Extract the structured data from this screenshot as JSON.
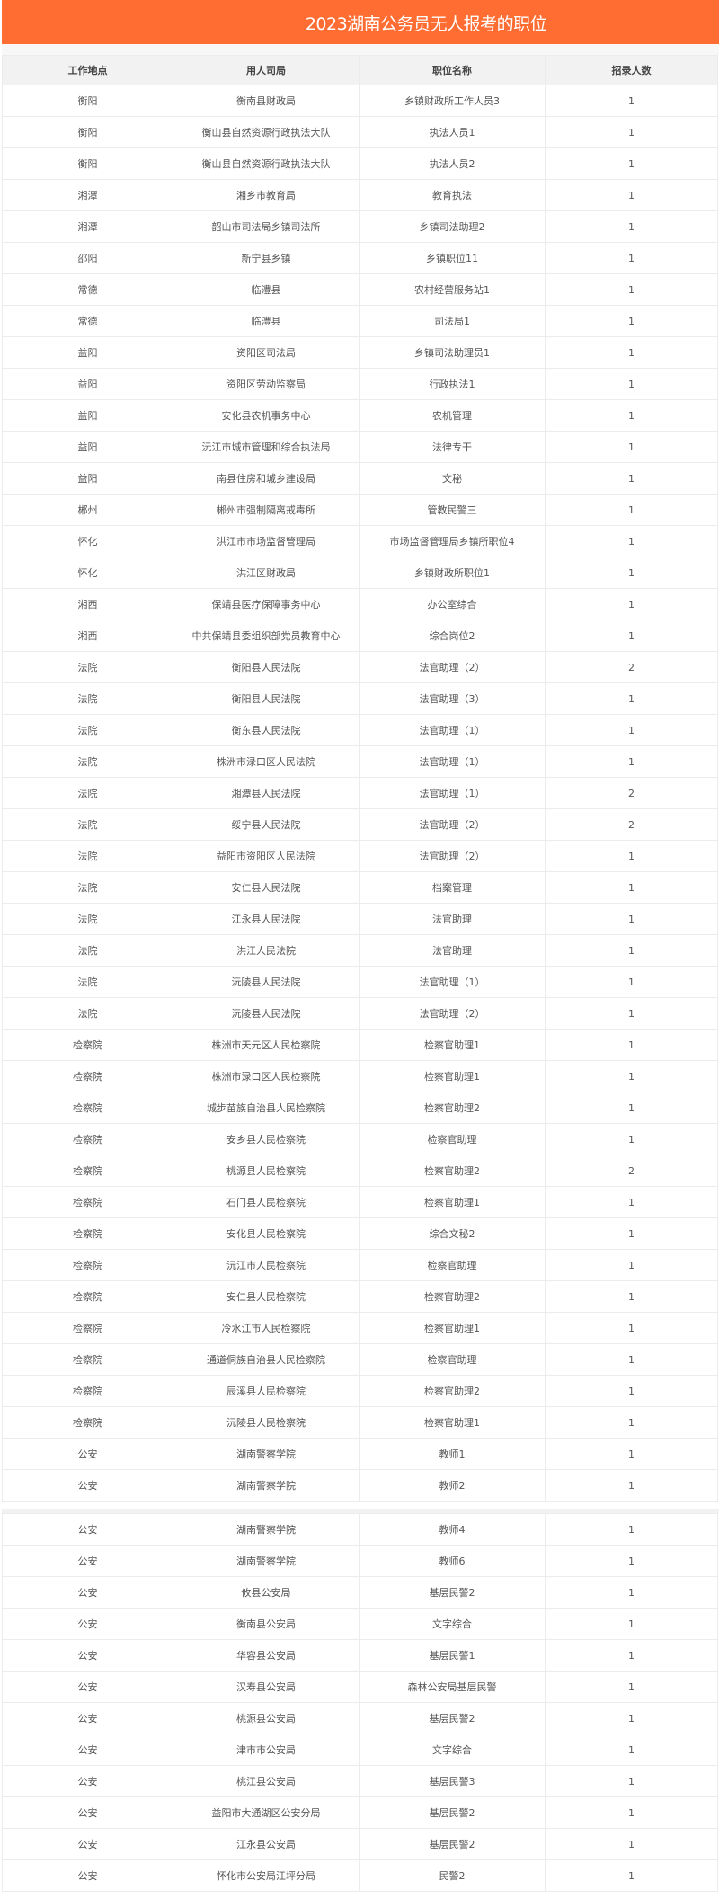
{
  "title": "2023湖南公务员无人报考的职位",
  "columns": [
    "工作地点",
    "用人司局",
    "职位名称",
    "招录人数"
  ],
  "rows_block1": [
    [
      "衡阳",
      "衡南县财政局",
      "乡镇财政所工作人员3",
      "1"
    ],
    [
      "衡阳",
      "衡山县自然资源行政执法大队",
      "执法人员1",
      "1"
    ],
    [
      "衡阳",
      "衡山县自然资源行政执法大队",
      "执法人员2",
      "1"
    ],
    [
      "湘潭",
      "湘乡市教育局",
      "教育执法",
      "1"
    ],
    [
      "湘潭",
      "韶山市司法局乡镇司法所",
      "乡镇司法助理2",
      "1"
    ],
    [
      "邵阳",
      "新宁县乡镇",
      "乡镇职位11",
      "1"
    ],
    [
      "常德",
      "临澧县",
      "农村经营服务站1",
      "1"
    ],
    [
      "常德",
      "临澧县",
      "司法局1",
      "1"
    ],
    [
      "益阳",
      "资阳区司法局",
      "乡镇司法助理员1",
      "1"
    ],
    [
      "益阳",
      "资阳区劳动监察局",
      "行政执法1",
      "1"
    ],
    [
      "益阳",
      "安化县农机事务中心",
      "农机管理",
      "1"
    ],
    [
      "益阳",
      "沅江市城市管理和综合执法局",
      "法律专干",
      "1"
    ],
    [
      "益阳",
      "南县住房和城乡建设局",
      "文秘",
      "1"
    ],
    [
      "郴州",
      "郴州市强制隔离戒毒所",
      "管教民警三",
      "1"
    ],
    [
      "怀化",
      "洪江市市场监督管理局",
      "市场监督管理局乡镇所职位4",
      "1"
    ],
    [
      "怀化",
      "洪江区财政局",
      "乡镇财政所职位1",
      "1"
    ],
    [
      "湘西",
      "保靖县医疗保障事务中心",
      "办公室综合",
      "1"
    ],
    [
      "湘西",
      "中共保靖县委组织部党员教育中心",
      "综合岗位2",
      "1"
    ],
    [
      "法院",
      "衡阳县人民法院",
      "法官助理（2）",
      "2"
    ],
    [
      "法院",
      "衡阳县人民法院",
      "法官助理（3）",
      "1"
    ],
    [
      "法院",
      "衡东县人民法院",
      "法官助理（1）",
      "1"
    ],
    [
      "法院",
      "株洲市渌口区人民法院",
      "法官助理（1）",
      "1"
    ],
    [
      "法院",
      "湘潭县人民法院",
      "法官助理（1）",
      "2"
    ],
    [
      "法院",
      "绥宁县人民法院",
      "法官助理（2）",
      "2"
    ],
    [
      "法院",
      "益阳市资阳区人民法院",
      "法官助理（2）",
      "1"
    ],
    [
      "法院",
      "安仁县人民法院",
      "档案管理",
      "1"
    ],
    [
      "法院",
      "江永县人民法院",
      "法官助理",
      "1"
    ],
    [
      "法院",
      "洪江人民法院",
      "法官助理",
      "1"
    ],
    [
      "法院",
      "沅陵县人民法院",
      "法官助理（1）",
      "1"
    ],
    [
      "法院",
      "沅陵县人民法院",
      "法官助理（2）",
      "1"
    ],
    [
      "检察院",
      "株洲市天元区人民检察院",
      "检察官助理1",
      "1"
    ],
    [
      "检察院",
      "株洲市渌口区人民检察院",
      "检察官助理1",
      "1"
    ],
    [
      "检察院",
      "城步苗族自治县人民检察院",
      "检察官助理2",
      "1"
    ],
    [
      "检察院",
      "安乡县人民检察院",
      "检察官助理",
      "1"
    ],
    [
      "检察院",
      "桃源县人民检察院",
      "检察官助理2",
      "2"
    ],
    [
      "检察院",
      "石门县人民检察院",
      "检察官助理1",
      "1"
    ],
    [
      "检察院",
      "安化县人民检察院",
      "综合文秘2",
      "1"
    ],
    [
      "检察院",
      "沅江市人民检察院",
      "检察官助理",
      "1"
    ],
    [
      "检察院",
      "安仁县人民检察院",
      "检察官助理2",
      "1"
    ],
    [
      "检察院",
      "冷水江市人民检察院",
      "检察官助理1",
      "1"
    ],
    [
      "检察院",
      "通道侗族自治县人民检察院",
      "检察官助理",
      "1"
    ],
    [
      "检察院",
      "辰溪县人民检察院",
      "检察官助理2",
      "1"
    ],
    [
      "检察院",
      "沅陵县人民检察院",
      "检察官助理1",
      "1"
    ],
    [
      "公安",
      "湖南警察学院",
      "教师1",
      "1"
    ],
    [
      "公安",
      "湖南警察学院",
      "教师2",
      "1"
    ]
  ],
  "rows_block2": [
    [
      "公安",
      "湖南警察学院",
      "教师4",
      "1"
    ],
    [
      "公安",
      "湖南警察学院",
      "教师6",
      "1"
    ],
    [
      "公安",
      "攸县公安局",
      "基层民警2",
      "1"
    ],
    [
      "公安",
      "衡南县公安局",
      "文字综合",
      "1"
    ],
    [
      "公安",
      "华容县公安局",
      "基层民警1",
      "1"
    ],
    [
      "公安",
      "汉寿县公安局",
      "森林公安局基层民警",
      "1"
    ],
    [
      "公安",
      "桃源县公安局",
      "基层民警2",
      "1"
    ],
    [
      "公安",
      "津市市公安局",
      "文字综合",
      "1"
    ],
    [
      "公安",
      "桃江县公安局",
      "基层民警3",
      "1"
    ],
    [
      "公安",
      "益阳市大通湖区公安分局",
      "基层民警2",
      "1"
    ],
    [
      "公安",
      "江永县公安局",
      "基层民警2",
      "1"
    ],
    [
      "公安",
      "怀化市公安局江坪分局",
      "民警2",
      "1"
    ]
  ],
  "colors": {
    "title_bar": "#ff6d33",
    "header_bg": "#f2f2f2"
  }
}
